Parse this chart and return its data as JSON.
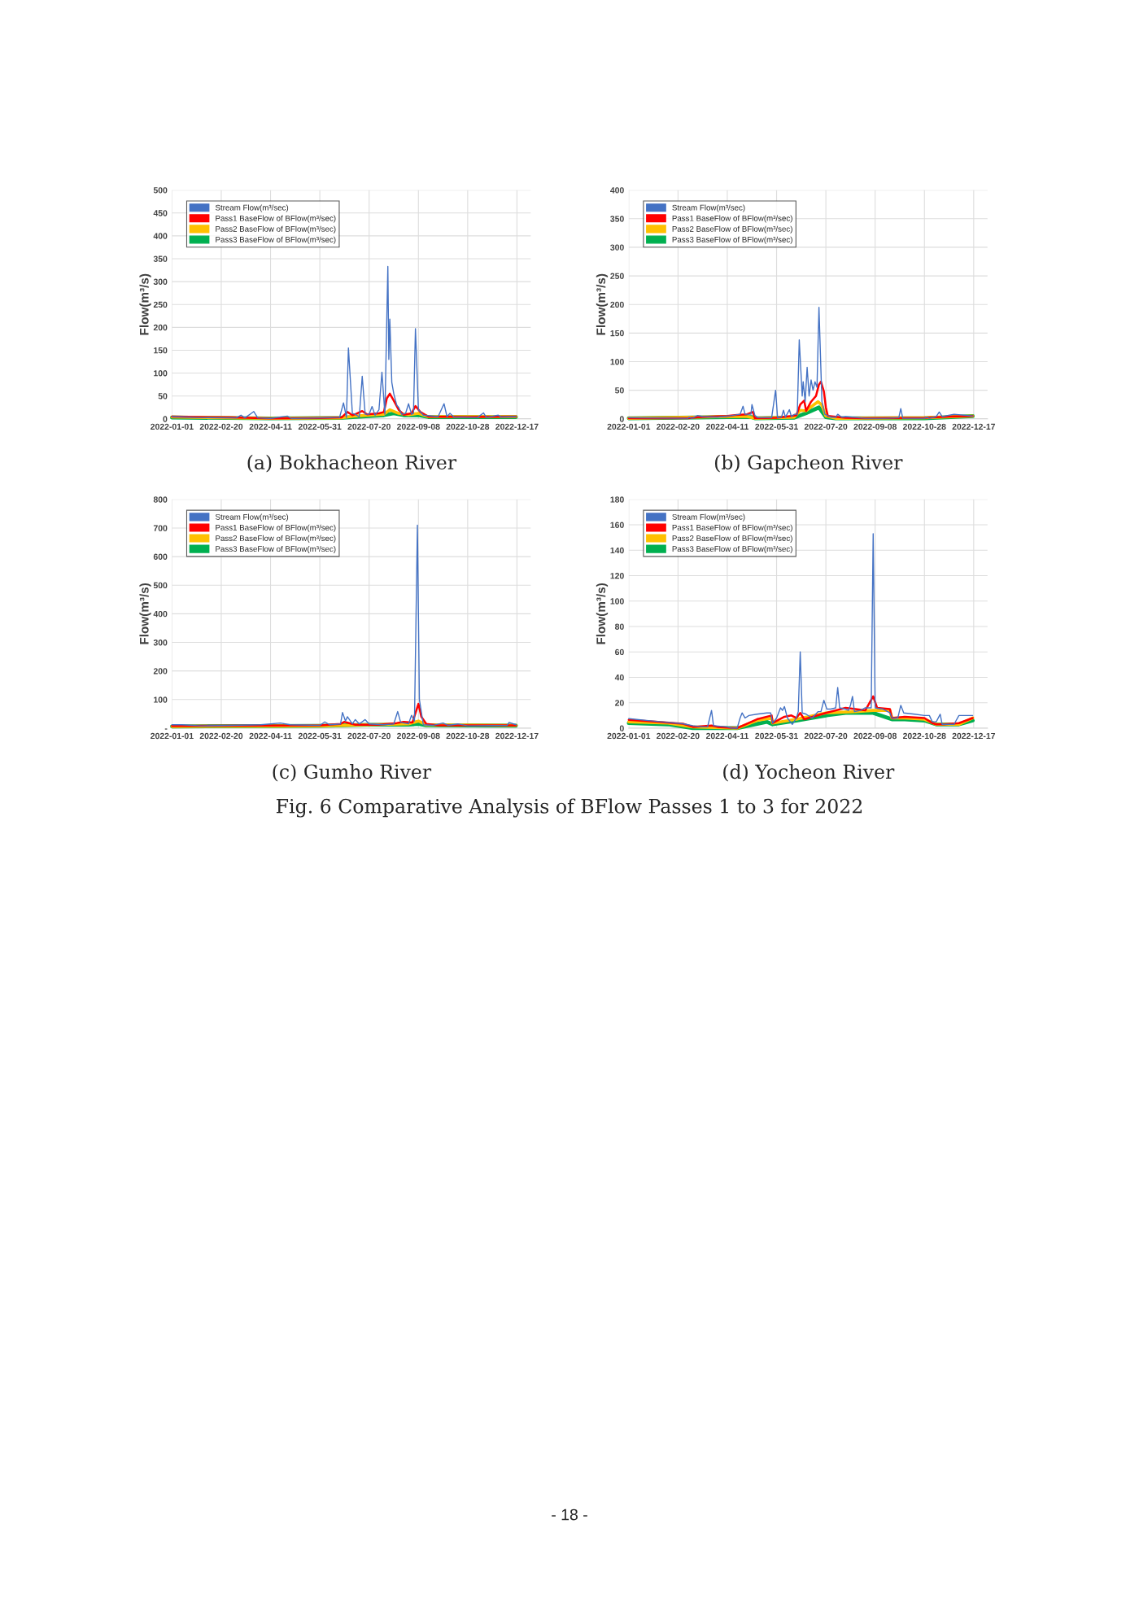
{
  "chart_data": [
    {
      "type": "line",
      "title": "(a) Bokhacheon River",
      "ylabel": "Flow(m³/s)",
      "xlim": [
        "2022-01-01",
        "2022-12-31"
      ],
      "xticks": [
        "2022-01-01",
        "2022-02-20",
        "2022-04-11",
        "2022-05-31",
        "2022-07-20",
        "2022-09-08",
        "2022-10-28",
        "2022-12-17"
      ],
      "ylim": [
        0,
        500
      ],
      "yticks": [
        0,
        50,
        100,
        150,
        200,
        250,
        300,
        350,
        400,
        450,
        500
      ],
      "grid": true,
      "legend": "top left",
      "series": [
        {
          "name": "Stream Flow(m³/sec)",
          "color": "#4472c4",
          "x": [
            "2022-01-01",
            "2022-01-31",
            "2022-03-07",
            "2022-03-12",
            "2022-03-16",
            "2022-03-25",
            "2022-03-29",
            "2022-04-11",
            "2022-04-28",
            "2022-05-02",
            "2022-05-31",
            "2022-06-20",
            "2022-06-24",
            "2022-06-27",
            "2022-06-29",
            "2022-07-03",
            "2022-07-06",
            "2022-07-10",
            "2022-07-13",
            "2022-07-16",
            "2022-07-20",
            "2022-07-23",
            "2022-07-26",
            "2022-07-30",
            "2022-08-02",
            "2022-08-05",
            "2022-08-08",
            "2022-08-09",
            "2022-08-10",
            "2022-08-12",
            "2022-08-14",
            "2022-08-17",
            "2022-08-19",
            "2022-08-22",
            "2022-08-26",
            "2022-08-29",
            "2022-09-01",
            "2022-09-03",
            "2022-09-05",
            "2022-09-08",
            "2022-09-13",
            "2022-09-28",
            "2022-10-04",
            "2022-10-07",
            "2022-10-10",
            "2022-10-14",
            "2022-11-07",
            "2022-11-13",
            "2022-11-16",
            "2022-11-28",
            "2022-12-01",
            "2022-12-16"
          ],
          "values": [
            5,
            3,
            2,
            8,
            2,
            16,
            2,
            1,
            6,
            1,
            2,
            3,
            35,
            3,
            155,
            12,
            10,
            4,
            93,
            10,
            10,
            27,
            8,
            20,
            102,
            10,
            333,
            130,
            218,
            80,
            55,
            30,
            25,
            10,
            12,
            33,
            10,
            12,
            197,
            20,
            8,
            5,
            33,
            5,
            12,
            4,
            3,
            13,
            3,
            8,
            4,
            5
          ]
        },
        {
          "name": "Pass1 BaseFlow of BFlow(m³/sec)",
          "color": "#ff0000",
          "x": [
            "2022-01-01",
            "2022-03-02",
            "2022-04-11",
            "2022-05-31",
            "2022-06-22",
            "2022-06-28",
            "2022-07-03",
            "2022-07-06",
            "2022-07-13",
            "2022-07-18",
            "2022-07-30",
            "2022-08-04",
            "2022-08-07",
            "2022-08-10",
            "2022-08-14",
            "2022-08-19",
            "2022-08-24",
            "2022-09-01",
            "2022-09-05",
            "2022-09-10",
            "2022-09-18",
            "2022-10-28",
            "2022-12-16"
          ],
          "values": [
            5,
            3,
            1,
            2,
            3,
            15,
            8,
            10,
            17,
            10,
            12,
            15,
            45,
            55,
            40,
            20,
            9,
            12,
            28,
            15,
            5,
            4,
            5
          ]
        },
        {
          "name": "Pass2 BaseFlow of BFlow(m³/sec)",
          "color": "#ffc000",
          "x": [
            "2022-01-01",
            "2022-04-11",
            "2022-06-20",
            "2022-07-05",
            "2022-07-20",
            "2022-08-04",
            "2022-08-10",
            "2022-08-19",
            "2022-08-29",
            "2022-09-08",
            "2022-09-18",
            "2022-12-16"
          ],
          "values": [
            4,
            1,
            2,
            6,
            8,
            10,
            20,
            12,
            9,
            12,
            5,
            5
          ]
        },
        {
          "name": "Pass3 BaseFlow of BFlow(m³/sec)",
          "color": "#00b050",
          "x": [
            "2022-01-01",
            "2022-04-11",
            "2022-06-20",
            "2022-07-20",
            "2022-08-04",
            "2022-08-14",
            "2022-08-24",
            "2022-09-08",
            "2022-09-18",
            "2022-12-16"
          ],
          "values": [
            3,
            1,
            2,
            6,
            8,
            12,
            8,
            8,
            4,
            4
          ]
        }
      ]
    },
    {
      "type": "line",
      "title": "(b) Gapcheon River",
      "ylabel": "Flow(m³/s)",
      "xlim": [
        "2022-01-01",
        "2022-12-31"
      ],
      "xticks": [
        "2022-01-01",
        "2022-02-20",
        "2022-04-11",
        "2022-05-31",
        "2022-07-20",
        "2022-09-08",
        "2022-10-28",
        "2022-12-17"
      ],
      "ylim": [
        0,
        400
      ],
      "yticks": [
        0,
        50,
        100,
        150,
        200,
        250,
        300,
        350,
        400
      ],
      "grid": true,
      "legend": "top left",
      "series": [
        {
          "name": "Stream Flow(m³/sec)",
          "color": "#4472c4",
          "x": [
            "2022-01-01",
            "2022-03-02",
            "2022-03-03",
            "2022-03-06",
            "2022-03-12",
            "2022-03-17",
            "2022-04-01",
            "2022-04-16",
            "2022-04-24",
            "2022-04-27",
            "2022-04-29",
            "2022-05-05",
            "2022-05-06",
            "2022-05-09",
            "2022-05-12",
            "2022-05-26",
            "2022-05-30",
            "2022-06-01",
            "2022-06-05",
            "2022-06-07",
            "2022-06-09",
            "2022-06-13",
            "2022-06-15",
            "2022-06-18",
            "2022-06-21",
            "2022-06-23",
            "2022-06-26",
            "2022-06-27",
            "2022-06-29",
            "2022-07-01",
            "2022-07-03",
            "2022-07-05",
            "2022-07-07",
            "2022-07-09",
            "2022-07-11",
            "2022-07-13",
            "2022-07-16",
            "2022-07-19",
            "2022-07-25",
            "2022-07-30",
            "2022-08-01",
            "2022-08-05",
            "2022-08-09",
            "2022-08-29",
            "2022-09-18",
            "2022-10-02",
            "2022-10-04",
            "2022-10-06",
            "2022-10-28",
            "2022-10-30",
            "2022-11-02",
            "2022-11-09",
            "2022-11-12",
            "2022-11-15",
            "2022-11-27",
            "2022-12-16"
          ],
          "values": [
            2,
            1,
            3,
            1,
            6,
            4,
            3,
            6,
            8,
            22,
            8,
            8,
            25,
            6,
            2,
            2,
            50,
            2,
            3,
            15,
            3,
            16,
            4,
            8,
            8,
            138,
            40,
            65,
            30,
            90,
            40,
            68,
            50,
            65,
            55,
            195,
            30,
            8,
            3,
            3,
            8,
            3,
            4,
            1,
            1,
            2,
            18,
            1,
            1,
            3,
            1,
            4,
            12,
            4,
            8,
            5
          ]
        },
        {
          "name": "Pass1 BaseFlow of BFlow(m³/sec)",
          "color": "#ff0000",
          "x": [
            "2022-01-01",
            "2022-03-02",
            "2022-03-12",
            "2022-04-11",
            "2022-04-21",
            "2022-05-01",
            "2022-05-07",
            "2022-05-09",
            "2022-05-31",
            "2022-06-20",
            "2022-06-24",
            "2022-06-28",
            "2022-06-30",
            "2022-07-05",
            "2022-07-10",
            "2022-07-13",
            "2022-07-15",
            "2022-07-18",
            "2022-07-20",
            "2022-07-22",
            "2022-08-09",
            "2022-08-29",
            "2022-10-28",
            "2022-11-22",
            "2022-12-16"
          ],
          "values": [
            1,
            1,
            3,
            5,
            7,
            8,
            12,
            1,
            2,
            6,
            25,
            32,
            14,
            30,
            40,
            60,
            65,
            48,
            20,
            5,
            2,
            1,
            2,
            4,
            5
          ]
        },
        {
          "name": "Pass2 BaseFlow of BFlow(m³/sec)",
          "color": "#ffc000",
          "x": [
            "2022-01-01",
            "2022-04-11",
            "2022-05-01",
            "2022-05-09",
            "2022-06-18",
            "2022-06-24",
            "2022-06-30",
            "2022-07-08",
            "2022-07-12",
            "2022-07-16",
            "2022-07-20",
            "2022-07-30",
            "2022-10-28",
            "2022-12-16"
          ],
          "values": [
            1,
            4,
            4,
            1,
            3,
            15,
            14,
            25,
            30,
            24,
            5,
            1,
            2,
            5
          ]
        },
        {
          "name": "Pass3 BaseFlow of BFlow(m³/sec)",
          "color": "#00b050",
          "x": [
            "2022-01-01",
            "2022-04-11",
            "2022-05-06",
            "2022-05-09",
            "2022-06-18",
            "2022-06-30",
            "2022-07-13",
            "2022-07-20",
            "2022-07-30",
            "2022-10-28",
            "2022-12-16"
          ],
          "values": [
            1,
            3,
            3,
            1,
            2,
            10,
            20,
            3,
            1,
            1,
            5
          ]
        }
      ]
    },
    {
      "type": "line",
      "title": "(c) Gumho River",
      "ylabel": "Flow(m³/s)",
      "xlim": [
        "2022-01-01",
        "2022-12-31"
      ],
      "xticks": [
        "2022-01-01",
        "2022-02-20",
        "2022-04-11",
        "2022-05-31",
        "2022-07-20",
        "2022-09-08",
        "2022-10-28",
        "2022-12-17"
      ],
      "ylim": [
        0,
        800
      ],
      "yticks": [
        {
          "value": 0,
          "label": "-"
        },
        100,
        200,
        300,
        400,
        500,
        600,
        700,
        800
      ],
      "grid": true,
      "legend": "top left",
      "series": [
        {
          "name": "Stream Flow(m³/sec)",
          "color": "#4472c4",
          "x": [
            "2022-01-01",
            "2022-01-11",
            "2022-01-31",
            "2022-03-02",
            "2022-04-01",
            "2022-04-21",
            "2022-05-01",
            "2022-05-31",
            "2022-06-05",
            "2022-06-10",
            "2022-06-21",
            "2022-06-23",
            "2022-06-26",
            "2022-06-28",
            "2022-07-03",
            "2022-07-06",
            "2022-07-10",
            "2022-07-16",
            "2022-07-20",
            "2022-08-04",
            "2022-08-14",
            "2022-08-18",
            "2022-08-21",
            "2022-08-29",
            "2022-09-01",
            "2022-09-04",
            "2022-09-07",
            "2022-09-09",
            "2022-09-13",
            "2022-09-23",
            "2022-10-03",
            "2022-10-08",
            "2022-10-18",
            "2022-10-28",
            "2022-12-07",
            "2022-12-09",
            "2022-12-16"
          ],
          "values": [
            12,
            12,
            8,
            10,
            12,
            18,
            12,
            10,
            22,
            12,
            15,
            55,
            25,
            40,
            15,
            30,
            15,
            30,
            15,
            12,
            15,
            58,
            20,
            15,
            45,
            25,
            710,
            100,
            12,
            10,
            18,
            10,
            15,
            8,
            10,
            20,
            12
          ]
        },
        {
          "name": "Pass1 BaseFlow of BFlow(m³/sec)",
          "color": "#ff0000",
          "x": [
            "2022-01-01",
            "2022-05-31",
            "2022-06-21",
            "2022-06-25",
            "2022-07-06",
            "2022-07-30",
            "2022-08-17",
            "2022-08-24",
            "2022-09-02",
            "2022-09-08",
            "2022-09-11",
            "2022-09-16",
            "2022-09-28",
            "2022-12-16"
          ],
          "values": [
            8,
            10,
            15,
            22,
            12,
            12,
            18,
            22,
            20,
            85,
            40,
            15,
            10,
            10
          ]
        },
        {
          "name": "Pass2 BaseFlow of BFlow(m³/sec)",
          "color": "#ffc000",
          "x": [
            "2022-01-01",
            "2022-05-31",
            "2022-07-20",
            "2022-08-29",
            "2022-09-08",
            "2022-09-16",
            "2022-12-16"
          ],
          "values": [
            6,
            8,
            12,
            15,
            25,
            12,
            10
          ]
        },
        {
          "name": "Pass3 BaseFlow of BFlow(m³/sec)",
          "color": "#00b050",
          "x": [
            "2022-01-01",
            "2022-05-31",
            "2022-07-20",
            "2022-08-29",
            "2022-09-08",
            "2022-09-16",
            "2022-12-16"
          ],
          "values": [
            6,
            8,
            12,
            12,
            15,
            10,
            9
          ]
        }
      ]
    },
    {
      "type": "line",
      "title": "(d) Yocheon River",
      "ylabel": "Flow(m³/s)",
      "xlim": [
        "2022-01-01",
        "2022-12-31"
      ],
      "xticks": [
        "2022-01-01",
        "2022-02-20",
        "2022-04-11",
        "2022-05-31",
        "2022-07-20",
        "2022-09-08",
        "2022-10-28",
        "2022-12-17"
      ],
      "ylim": [
        0,
        180
      ],
      "yticks": [
        0,
        20,
        40,
        60,
        80,
        100,
        120,
        140,
        160,
        180
      ],
      "grid": true,
      "legend": "top left",
      "annotations": [
        "Fig. 6 Comparative Analysis of BFlow Passes 1 to 3 for 2022",
        "- 18 -"
      ],
      "series": [
        {
          "name": "Stream Flow(m³/sec)",
          "color": "#4472c4",
          "x": [
            "2022-01-01",
            "2022-01-21",
            "2022-02-10",
            "2022-02-25",
            "2022-03-07",
            "2022-03-17",
            "2022-03-22",
            "2022-03-26",
            "2022-03-28",
            "2022-04-11",
            "2022-04-16",
            "2022-04-21",
            "2022-04-24",
            "2022-04-26",
            "2022-04-29",
            "2022-05-03",
            "2022-05-11",
            "2022-05-21",
            "2022-05-25",
            "2022-05-27",
            "2022-05-31",
            "2022-06-04",
            "2022-06-06",
            "2022-06-08",
            "2022-06-11",
            "2022-06-16",
            "2022-06-20",
            "2022-06-22",
            "2022-06-24",
            "2022-06-26",
            "2022-06-30",
            "2022-07-06",
            "2022-07-12",
            "2022-07-15",
            "2022-07-18",
            "2022-07-21",
            "2022-07-25",
            "2022-07-30",
            "2022-08-01",
            "2022-08-03",
            "2022-08-09",
            "2022-08-12",
            "2022-08-14",
            "2022-08-16",
            "2022-08-18",
            "2022-08-24",
            "2022-08-29",
            "2022-09-04",
            "2022-09-06",
            "2022-09-08",
            "2022-09-16",
            "2022-09-23",
            "2022-09-25",
            "2022-10-01",
            "2022-10-04",
            "2022-10-07",
            "2022-10-18",
            "2022-10-28",
            "2022-11-02",
            "2022-11-05",
            "2022-11-09",
            "2022-11-13",
            "2022-11-15",
            "2022-11-27",
            "2022-12-02",
            "2022-12-07",
            "2022-12-16"
          ],
          "values": [
            7.5,
            6,
            4.5,
            3.5,
            2,
            1,
            1,
            14,
            2,
            1,
            0,
            0,
            8,
            12,
            8,
            10,
            11,
            12,
            12,
            4,
            8,
            16,
            14,
            17,
            8,
            3,
            8,
            13,
            60,
            12,
            11,
            8,
            13,
            13,
            22,
            15,
            15,
            16,
            32,
            16,
            15,
            14,
            18,
            25,
            13,
            14,
            16,
            16,
            153,
            16,
            15,
            12,
            8,
            8,
            18,
            12,
            11,
            10,
            10,
            5,
            5,
            11,
            3,
            3,
            10,
            10,
            10
          ]
        },
        {
          "name": "Pass1 BaseFlow of BFlow(m³/sec)",
          "color": "#ff0000",
          "x": [
            "2022-01-01",
            "2022-01-31",
            "2022-02-25",
            "2022-03-07",
            "2022-03-26",
            "2022-04-01",
            "2022-04-21",
            "2022-05-11",
            "2022-05-26",
            "2022-05-27",
            "2022-06-08",
            "2022-06-15",
            "2022-06-20",
            "2022-06-24",
            "2022-06-28",
            "2022-07-20",
            "2022-08-09",
            "2022-08-29",
            "2022-09-06",
            "2022-09-10",
            "2022-09-23",
            "2022-09-25",
            "2022-10-08",
            "2022-10-28",
            "2022-11-05",
            "2022-11-09",
            "2022-11-17",
            "2022-12-02",
            "2022-12-16"
          ],
          "values": [
            6.5,
            5,
            3.5,
            1,
            2,
            1,
            0,
            7,
            10,
            4,
            9,
            10,
            8,
            12,
            7,
            12,
            16,
            14,
            25,
            16,
            15,
            8,
            9,
            8,
            4,
            3,
            3,
            4,
            8
          ]
        },
        {
          "name": "Pass2 BaseFlow of BFlow(m³/sec)",
          "color": "#ffc000",
          "x": [
            "2022-01-01",
            "2022-02-10",
            "2022-03-07",
            "2022-04-21",
            "2022-05-11",
            "2022-05-26",
            "2022-05-27",
            "2022-06-20",
            "2022-07-20",
            "2022-08-19",
            "2022-09-06",
            "2022-09-23",
            "2022-09-25",
            "2022-10-08",
            "2022-10-28",
            "2022-11-09",
            "2022-12-02",
            "2022-12-16"
          ],
          "values": [
            5,
            4,
            1,
            0,
            6,
            8,
            4,
            7,
            12,
            13,
            14,
            14,
            8,
            8,
            7,
            3,
            3,
            8
          ]
        },
        {
          "name": "Pass3 BaseFlow of BFlow(m³/sec)",
          "color": "#00b050",
          "x": [
            "2022-01-01",
            "2022-02-10",
            "2022-03-07",
            "2022-04-21",
            "2022-05-21",
            "2022-05-27",
            "2022-06-20",
            "2022-07-20",
            "2022-08-09",
            "2022-09-06",
            "2022-09-25",
            "2022-10-08",
            "2022-10-28",
            "2022-11-09",
            "2022-12-02",
            "2022-12-16"
          ],
          "values": [
            4,
            3,
            0,
            0,
            5,
            3,
            6,
            10,
            12,
            12,
            7,
            7,
            6,
            3,
            3,
            6
          ]
        }
      ]
    }
  ]
}
